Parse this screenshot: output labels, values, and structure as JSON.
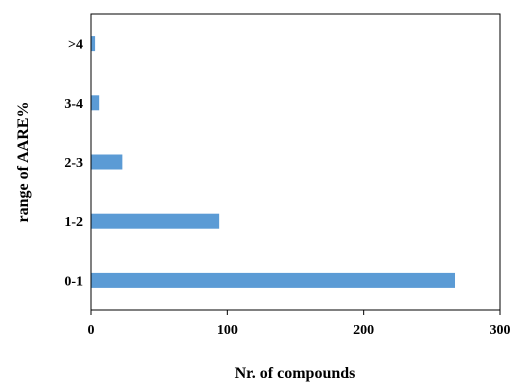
{
  "chart_data": {
    "type": "bar",
    "orientation": "horizontal",
    "categories": [
      "0-1",
      "1-2",
      "2-3",
      "3-4",
      ">4"
    ],
    "values": [
      267,
      94,
      23,
      6,
      3
    ],
    "xlabel": "Nr. of compounds",
    "ylabel": "range of AARE%",
    "xlim": [
      0,
      300
    ],
    "xticks": [
      "0",
      "100",
      "200",
      "300"
    ],
    "grid": false,
    "legend": "none",
    "bar_color": "#5B9BD5"
  }
}
